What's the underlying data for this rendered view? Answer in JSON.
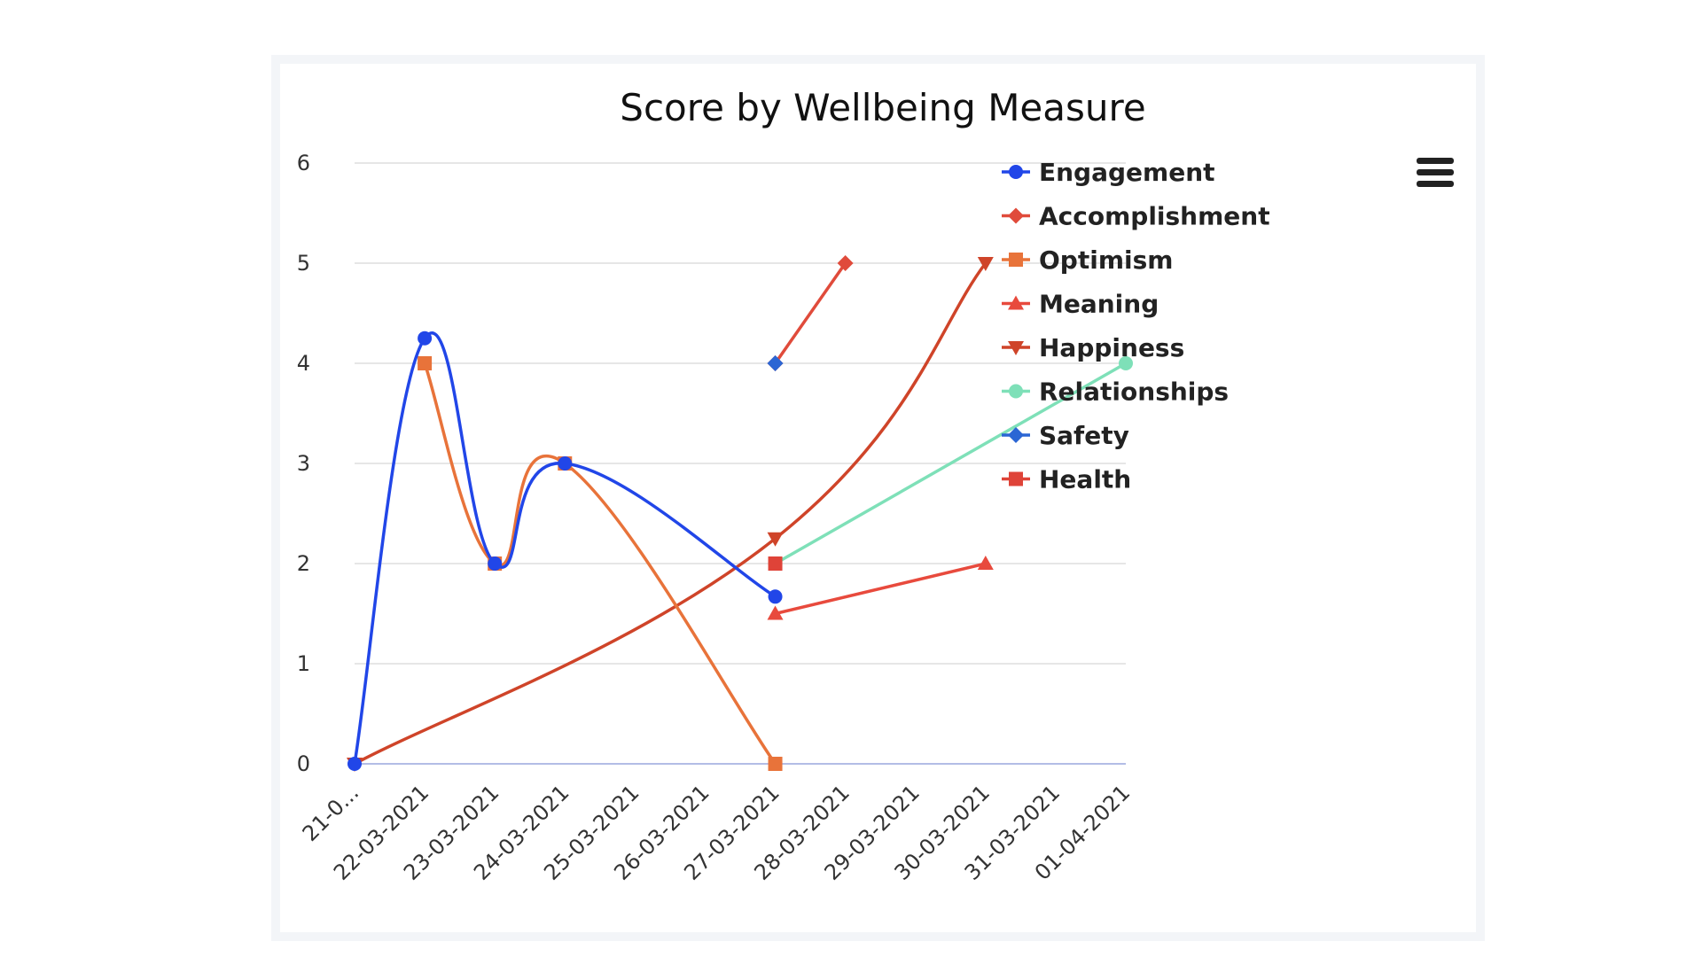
{
  "colors": {
    "engagement": "#2146e8",
    "accomplishment": "#e04b3b",
    "optimism": "#e8733a",
    "meaning": "#e84a3d",
    "happiness": "#cf4429",
    "relationships": "#7ee0b8",
    "safety": "#2b66d4",
    "health": "#df4338"
  },
  "menu": {
    "icon": "hamburger-menu-icon"
  },
  "chart_data": {
    "type": "line",
    "title": "Score by Wellbeing Measure",
    "xlabel": "",
    "ylabel": "",
    "categories": [
      "21-0...",
      "22-03-2021",
      "23-03-2021",
      "24-03-2021",
      "25-03-2021",
      "26-03-2021",
      "27-03-2021",
      "28-03-2021",
      "29-03-2021",
      "30-03-2021",
      "31-03-2021",
      "01-04-2021"
    ],
    "yticks": [
      "0",
      "1",
      "2",
      "3",
      "4",
      "5",
      "6"
    ],
    "ylim": [
      0,
      6
    ],
    "grid": true,
    "legend": "right",
    "series": [
      {
        "name": "Engagement",
        "marker": "circle",
        "points": [
          [
            0,
            0
          ],
          [
            1,
            4.25
          ],
          [
            2,
            2
          ],
          [
            3,
            3
          ],
          [
            6,
            1.67
          ]
        ]
      },
      {
        "name": "Accomplishment",
        "marker": "diamond",
        "points": [
          [
            6,
            4
          ],
          [
            7,
            5
          ]
        ]
      },
      {
        "name": "Optimism",
        "marker": "square",
        "points": [
          [
            1,
            4
          ],
          [
            2,
            2
          ],
          [
            3,
            3
          ],
          [
            6,
            0
          ]
        ]
      },
      {
        "name": "Meaning",
        "marker": "triangle",
        "points": [
          [
            6,
            1.5
          ],
          [
            9,
            2
          ]
        ]
      },
      {
        "name": "Happiness",
        "marker": "triangle-down",
        "points": [
          [
            0,
            0
          ],
          [
            6,
            2.25
          ],
          [
            9,
            5
          ]
        ]
      },
      {
        "name": "Relationships",
        "marker": "circle",
        "points": [
          [
            6,
            2
          ],
          [
            11,
            4
          ]
        ]
      },
      {
        "name": "Safety",
        "marker": "diamond",
        "points": [
          [
            6,
            4
          ]
        ]
      },
      {
        "name": "Health",
        "marker": "square",
        "points": [
          [
            6,
            2
          ]
        ]
      }
    ]
  }
}
